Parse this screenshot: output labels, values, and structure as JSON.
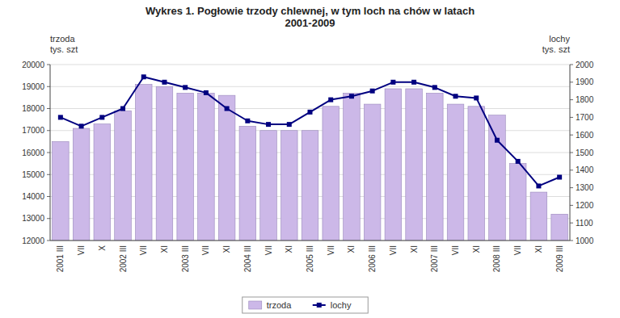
{
  "chart_data": {
    "type": "bar",
    "title": "Wykres 1. Pogłowie trzody chlewnej, w tym loch na chów w latach\n2001-2009",
    "ylabel": "trzoda\ntys. szt",
    "y2label": "lochy\ntys. szt",
    "categories": [
      "2001 III",
      "VII",
      "X",
      "2002 III",
      "VII",
      "XI",
      "2003 III",
      "VII",
      "XI",
      "2004 III",
      "VII",
      "XI",
      "2005 III",
      "VII",
      "XI",
      "2006 III",
      "VII",
      "XI",
      "2007 III",
      "VII",
      "XI",
      "2008 III",
      "VII",
      "XI",
      "2009 III"
    ],
    "series": [
      {
        "name": "trzoda",
        "type": "bar",
        "color": "#ccb8e8",
        "values": [
          16500,
          17100,
          17300,
          17900,
          19100,
          19000,
          18700,
          18700,
          18600,
          17200,
          17000,
          17000,
          17000,
          18100,
          18700,
          18200,
          18900,
          18900,
          18700,
          18200,
          18100,
          17700,
          15500,
          14200,
          13200
        ]
      },
      {
        "name": "lochy",
        "type": "line",
        "axis": "y2",
        "color": "#000080",
        "marker": "square",
        "values": [
          1700,
          1650,
          1700,
          1750,
          1930,
          1900,
          1870,
          1840,
          1750,
          1680,
          1660,
          1660,
          1730,
          1800,
          1820,
          1850,
          1900,
          1900,
          1870,
          1820,
          1810,
          1570,
          1450,
          1310,
          1360
        ]
      }
    ],
    "ylim": [
      12000,
      20000
    ],
    "yticks": [
      12000,
      13000,
      14000,
      15000,
      16000,
      17000,
      18000,
      19000,
      20000
    ],
    "y2lim": [
      1000,
      2000
    ],
    "y2ticks": [
      1000,
      1100,
      1200,
      1300,
      1400,
      1500,
      1600,
      1700,
      1800,
      1900,
      2000
    ],
    "grid": true,
    "legend": "bottom"
  }
}
